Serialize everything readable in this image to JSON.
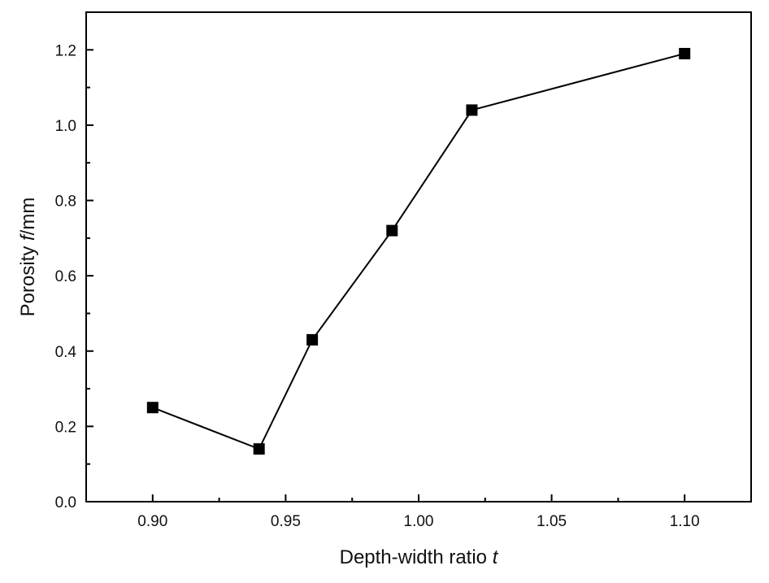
{
  "chart_data": {
    "type": "line",
    "title": "",
    "xlabel": "Depth-width ratio",
    "xlabel_var": "t",
    "ylabel": "Porosity",
    "ylabel_var": "f",
    "ylabel_unit": "/mm",
    "xlim": [
      0.875,
      1.125
    ],
    "ylim": [
      0,
      1.3
    ],
    "xticks": [
      "0.90",
      "0.95",
      "1.00",
      "1.05",
      "1.10"
    ],
    "xtick_values": [
      0.9,
      0.95,
      1.0,
      1.05,
      1.1
    ],
    "yticks": [
      "0.0",
      "0.2",
      "0.4",
      "0.6",
      "0.8",
      "1.0",
      "1.2"
    ],
    "ytick_values": [
      0,
      0.2,
      0.4,
      0.6,
      0.8,
      1.0,
      1.2
    ],
    "grid": false,
    "series": [
      {
        "name": "Porosity",
        "marker": "square",
        "color": "#000000",
        "x": [
          0.9,
          0.94,
          0.96,
          0.99,
          1.02,
          1.1
        ],
        "y": [
          0.25,
          0.14,
          0.43,
          0.72,
          1.04,
          1.19
        ]
      }
    ]
  }
}
